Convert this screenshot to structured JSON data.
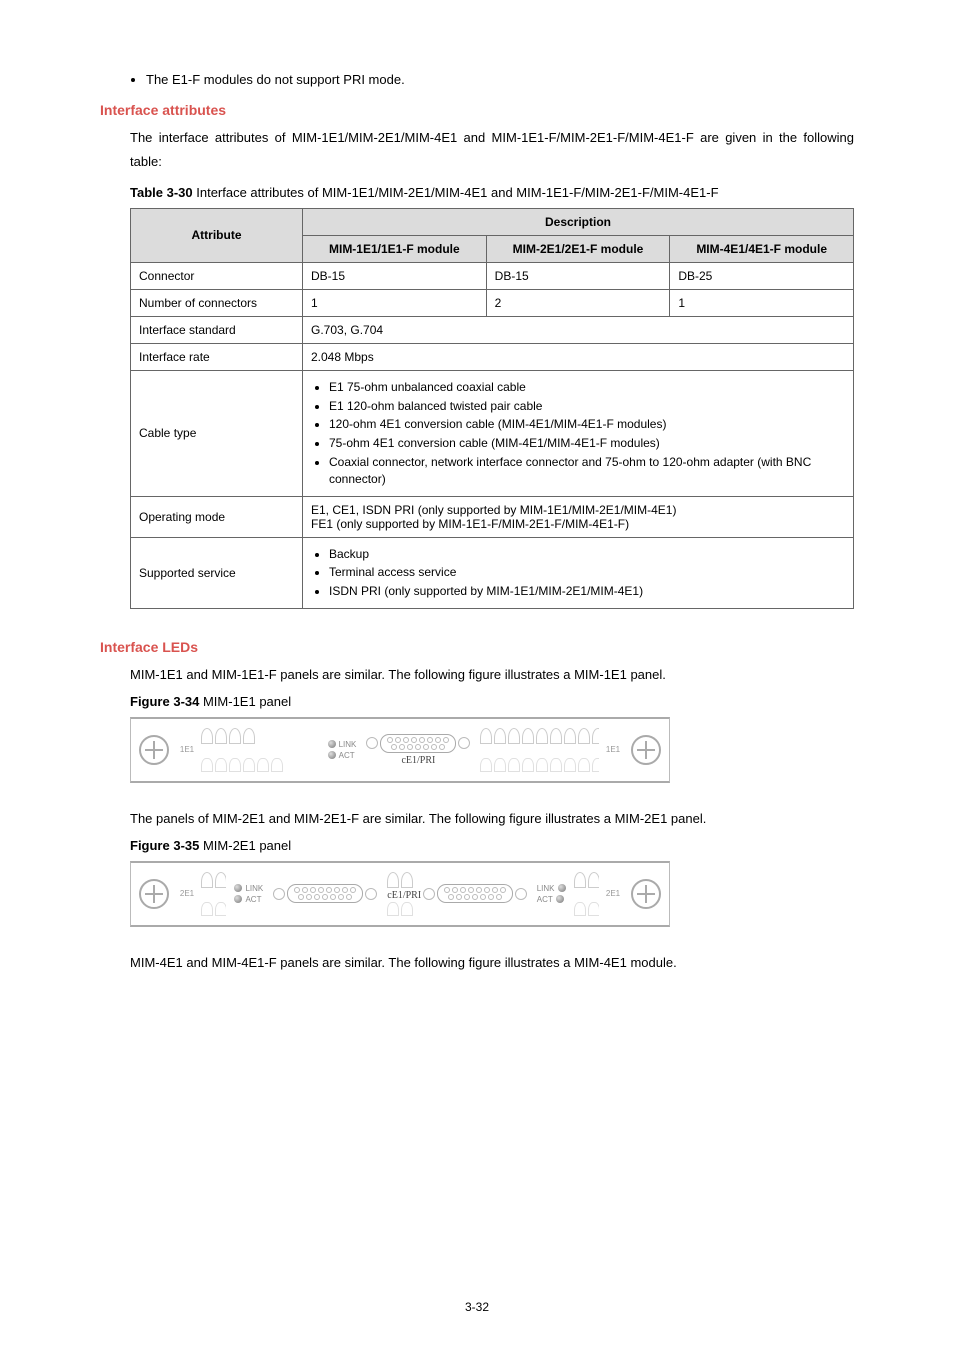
{
  "bullet_note": "The E1-F modules do not support PRI mode.",
  "sections": {
    "interface_attributes": "Interface attributes",
    "interface_leds": "Interface LEDs"
  },
  "attr_intro": "The interface attributes of MIM-1E1/MIM-2E1/MIM-4E1 and MIM-1E1-F/MIM-2E1-F/MIM-4E1-F are given in the following table:",
  "table": {
    "caption_num": "Table 3-30",
    "caption_text": " Interface attributes of MIM-1E1/MIM-2E1/MIM-4E1 and MIM-1E1-F/MIM-2E1-F/MIM-4E1-F",
    "headers": {
      "attribute": "Attribute",
      "description": "Description",
      "col1": "MIM-1E1/1E1-F module",
      "col2": "MIM-2E1/2E1-F module",
      "col3": "MIM-4E1/4E1-F module"
    },
    "rows": {
      "connector": {
        "label": "Connector",
        "v1": "DB-15",
        "v2": "DB-15",
        "v3": "DB-25"
      },
      "num_connectors": {
        "label": "Number of connectors",
        "v1": "1",
        "v2": "2",
        "v3": "1"
      },
      "standard": {
        "label": "Interface standard",
        "val": "G.703, G.704"
      },
      "rate": {
        "label": "Interface rate",
        "val": "2.048 Mbps"
      },
      "cable": {
        "label": "Cable type",
        "items": [
          "E1 75-ohm unbalanced coaxial cable",
          "E1 120-ohm balanced twisted pair cable",
          "120-ohm 4E1 conversion cable (MIM-4E1/MIM-4E1-F modules)",
          "75-ohm 4E1 conversion cable (MIM-4E1/MIM-4E1-F modules)",
          "Coaxial connector, network interface connector and 75-ohm to 120-ohm adapter (with BNC connector)"
        ]
      },
      "opmode": {
        "label": "Operating mode",
        "line1": "E1, CE1, ISDN PRI (only supported by MIM-1E1/MIM-2E1/MIM-4E1)",
        "line2": "FE1 (only supported by MIM-1E1-F/MIM-2E1-F/MIM-4E1-F)"
      },
      "service": {
        "label": "Supported service",
        "items": [
          "Backup",
          "Terminal access service",
          "ISDN PRI (only supported by MIM-1E1/MIM-2E1/MIM-4E1)"
        ]
      }
    }
  },
  "leds_intro_1": "MIM-1E1 and MIM-1E1-F panels are similar. The following figure illustrates a MIM-1E1 panel.",
  "fig34": {
    "num": "Figure 3-34",
    "text": " MIM-1E1 panel"
  },
  "panel1": {
    "side": "1E1",
    "link": "LINK",
    "act": "ACT",
    "model": "cE1/PRI"
  },
  "leds_intro_2": "The panels of MIM-2E1 and MIM-2E1-F are similar. The following figure illustrates a MIM-2E1 panel.",
  "fig35": {
    "num": "Figure 3-35",
    "text": " MIM-2E1 panel"
  },
  "panel2": {
    "side": "2E1",
    "link": "LINK",
    "act": "ACT",
    "model": "cE1/PRI"
  },
  "leds_intro_3": "MIM-4E1 and MIM-4E1-F panels are similar. The following figure illustrates a MIM-4E1 module.",
  "page_number": "3-32"
}
